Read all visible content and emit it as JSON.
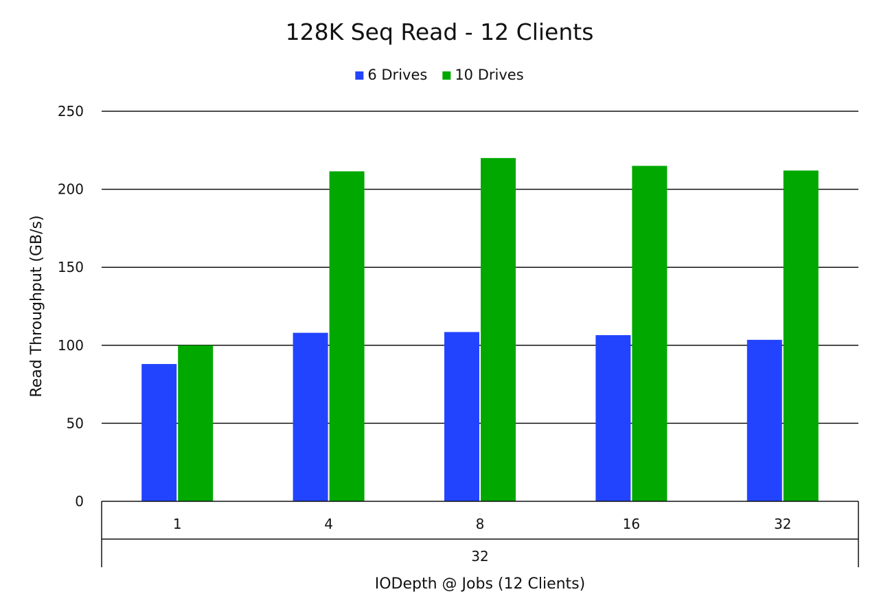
{
  "chart_data": {
    "type": "bar",
    "title": "128K Seq Read - 12 Clients",
    "xlabel": "IODepth @ Jobs (12 Clients)",
    "ylabel": "Read Throughput (GB/s)",
    "group_label": "32",
    "categories": [
      "1",
      "4",
      "8",
      "16",
      "32"
    ],
    "series": [
      {
        "name": "6 Drives",
        "color": "#2244ff",
        "values": [
          88,
          108,
          108.5,
          106.5,
          103.5
        ]
      },
      {
        "name": "10 Drives",
        "color": "#00a800",
        "values": [
          100,
          211.5,
          220,
          215,
          212
        ]
      }
    ],
    "ylim": [
      0,
      250
    ],
    "yticks": [
      "0",
      "50",
      "100",
      "150",
      "200",
      "250"
    ],
    "grid": true,
    "legend_position": "top-center"
  }
}
